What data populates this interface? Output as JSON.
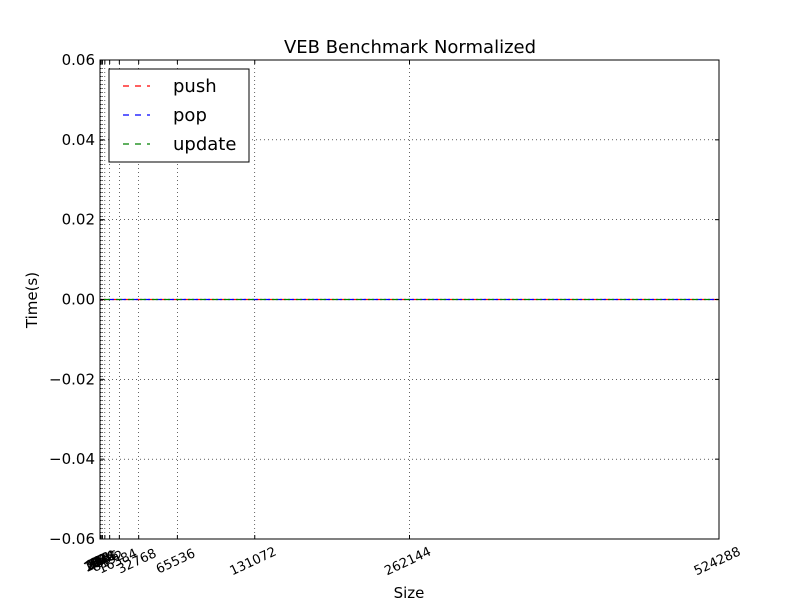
{
  "chart_data": {
    "type": "line",
    "title": "VEB Benchmark Normalized",
    "xlabel": "Size",
    "ylabel": "Time(s)",
    "xlim": [
      0,
      524288
    ],
    "ylim": [
      -0.06,
      0.06
    ],
    "x": [
      2,
      4,
      8,
      16,
      32,
      64,
      128,
      256,
      512,
      1024,
      2048,
      4096,
      8192,
      16384,
      32768,
      65536,
      131072,
      262144,
      524288
    ],
    "xticks": [
      2,
      4,
      8,
      16,
      32,
      64,
      128,
      256,
      512,
      1024,
      2048,
      4096,
      8192,
      16384,
      32768,
      65536,
      131072,
      262144,
      524288
    ],
    "xtick_labels": [
      "2",
      "4",
      "8",
      "16",
      "32",
      "64",
      "128",
      "256",
      "512",
      "1024",
      "2048",
      "4096",
      "8192",
      "16384",
      "32768",
      "65536",
      "131072",
      "262144",
      "524288"
    ],
    "yticks": [
      -0.06,
      -0.04,
      -0.02,
      0.0,
      0.02,
      0.04,
      0.06
    ],
    "ytick_labels": [
      "−0.06",
      "−0.04",
      "−0.02",
      "0.00",
      "0.02",
      "0.04",
      "0.06"
    ],
    "grid": true,
    "legend_position": "top-left",
    "series": [
      {
        "name": "push",
        "color": "#ff0000",
        "style": "dashed",
        "values": [
          0,
          0,
          0,
          0,
          0,
          0,
          0,
          0,
          0,
          0,
          0,
          0,
          0,
          0,
          0,
          0,
          0,
          0,
          0
        ]
      },
      {
        "name": "pop",
        "color": "#0000ff",
        "style": "dashed",
        "values": [
          0,
          0,
          0,
          0,
          0,
          0,
          0,
          0,
          0,
          0,
          0,
          0,
          0,
          0,
          0,
          0,
          0,
          0,
          0
        ]
      },
      {
        "name": "update",
        "color": "#008000",
        "style": "dashed",
        "values": [
          0,
          0,
          0,
          0,
          0,
          0,
          0,
          0,
          0,
          0,
          0,
          0,
          0,
          0,
          0,
          0,
          0,
          0,
          0
        ]
      }
    ]
  }
}
